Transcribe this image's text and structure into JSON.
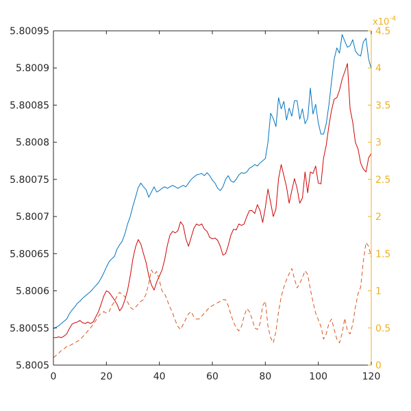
{
  "chart_data": {
    "type": "line",
    "x": [
      0,
      1,
      2,
      3,
      4,
      5,
      6,
      7,
      8,
      9,
      10,
      11,
      12,
      13,
      14,
      15,
      16,
      17,
      18,
      19,
      20,
      21,
      22,
      23,
      24,
      25,
      26,
      27,
      28,
      29,
      30,
      31,
      32,
      33,
      34,
      35,
      36,
      37,
      38,
      39,
      40,
      41,
      42,
      43,
      44,
      45,
      46,
      47,
      48,
      49,
      50,
      51,
      52,
      53,
      54,
      55,
      56,
      57,
      58,
      59,
      60,
      61,
      62,
      63,
      64,
      65,
      66,
      67,
      68,
      69,
      70,
      71,
      72,
      73,
      74,
      75,
      76,
      77,
      78,
      79,
      80,
      81,
      82,
      83,
      84,
      85,
      86,
      87,
      88,
      89,
      90,
      91,
      92,
      93,
      94,
      95,
      96,
      97,
      98,
      99,
      100,
      101,
      102,
      103,
      104,
      105,
      106,
      107,
      108,
      109,
      110,
      111,
      112,
      113,
      114,
      115,
      116,
      117,
      118,
      119,
      120
    ],
    "xlim": [
      0,
      120
    ],
    "xticks": [
      0,
      20,
      40,
      60,
      80,
      100,
      120
    ],
    "left_axis": {
      "ylim": [
        5.8005,
        5.80095
      ],
      "ticks": [
        5.8005,
        5.80055,
        5.8006,
        5.80065,
        5.8007,
        5.80075,
        5.8008,
        5.80085,
        5.8009,
        5.80095
      ],
      "tick_labels": [
        "5.8005",
        "5.80055",
        "5.8006",
        "5.80065",
        "5.8007",
        "5.80075",
        "5.8008",
        "5.80085",
        "5.8009",
        "5.80095"
      ]
    },
    "right_axis": {
      "ylim": [
        0,
        4.5
      ],
      "ticks": [
        0,
        0.5,
        1,
        1.5,
        2,
        2.5,
        3,
        3.5,
        4,
        4.5
      ],
      "tick_labels": [
        "0",
        "0.5",
        "1",
        "1.5",
        "2",
        "2.5",
        "3",
        "3.5",
        "4",
        "4.5"
      ],
      "exponent_base": "x10",
      "exponent_power": "-4",
      "color": "#edb120"
    },
    "grid": false,
    "series": [
      {
        "axis": "left",
        "style": "solid",
        "color": "#0072bd",
        "values": [
          5.800549,
          5.800551,
          5.800553,
          5.800556,
          5.800559,
          5.800562,
          5.800569,
          5.800574,
          5.800578,
          5.800583,
          5.800586,
          5.80059,
          5.800593,
          5.800596,
          5.800599,
          5.800603,
          5.800607,
          5.800611,
          5.800617,
          5.800624,
          5.800632,
          5.800639,
          5.800643,
          5.800646,
          5.800656,
          5.800662,
          5.800667,
          5.800677,
          5.80069,
          5.8007,
          5.800714,
          5.800726,
          5.800739,
          5.800745,
          5.80074,
          5.800736,
          5.800726,
          5.800733,
          5.80074,
          5.800733,
          5.800735,
          5.800738,
          5.80074,
          5.800738,
          5.80074,
          5.800742,
          5.80074,
          5.800738,
          5.80074,
          5.800742,
          5.80074,
          5.800745,
          5.80075,
          5.800753,
          5.800756,
          5.800757,
          5.800758,
          5.800755,
          5.800759,
          5.800755,
          5.800749,
          5.800745,
          5.800738,
          5.800735,
          5.80074,
          5.80075,
          5.800755,
          5.800748,
          5.800746,
          5.80075,
          5.800756,
          5.800759,
          5.800758,
          5.80076,
          5.800765,
          5.800767,
          5.80077,
          5.800768,
          5.800772,
          5.800775,
          5.800778,
          5.8008,
          5.800839,
          5.800832,
          5.800821,
          5.80086,
          5.800845,
          5.800855,
          5.80083,
          5.800846,
          5.800835,
          5.800856,
          5.800856,
          5.800831,
          5.800845,
          5.800825,
          5.800832,
          5.800873,
          5.800838,
          5.800851,
          5.800826,
          5.800811,
          5.800811,
          5.800825,
          5.80085,
          5.800882,
          5.800912,
          5.800927,
          5.80092,
          5.800945,
          5.800936,
          5.800928,
          5.80093,
          5.800938,
          5.800923,
          5.800918,
          5.800916,
          5.800935,
          5.80094,
          5.800912,
          5.800899
        ]
      },
      {
        "axis": "left",
        "style": "solid",
        "color": "#d00000",
        "values": [
          5.800537,
          5.800537,
          5.800538,
          5.800537,
          5.800539,
          5.800542,
          5.800549,
          5.800555,
          5.800557,
          5.800558,
          5.80056,
          5.800557,
          5.800556,
          5.800558,
          5.800556,
          5.800558,
          5.800565,
          5.800572,
          5.800582,
          5.800593,
          5.8006,
          5.800598,
          5.800593,
          5.800588,
          5.800582,
          5.800573,
          5.800578,
          5.800588,
          5.800601,
          5.80062,
          5.800643,
          5.800659,
          5.800669,
          5.800663,
          5.80065,
          5.800638,
          5.80062,
          5.800608,
          5.800601,
          5.800612,
          5.80062,
          5.800628,
          5.800642,
          5.800661,
          5.800675,
          5.80068,
          5.800678,
          5.800681,
          5.800693,
          5.800688,
          5.80067,
          5.80066,
          5.800672,
          5.800684,
          5.80069,
          5.800688,
          5.80069,
          5.800683,
          5.80068,
          5.800672,
          5.80067,
          5.800671,
          5.800668,
          5.80066,
          5.800648,
          5.80065,
          5.800661,
          5.800675,
          5.800683,
          5.800682,
          5.80069,
          5.800688,
          5.80069,
          5.8007,
          5.800708,
          5.800708,
          5.800704,
          5.800716,
          5.800708,
          5.800692,
          5.800712,
          5.800737,
          5.800719,
          5.8007,
          5.80071,
          5.800751,
          5.80077,
          5.800755,
          5.80074,
          5.800718,
          5.800735,
          5.800751,
          5.800738,
          5.800718,
          5.800725,
          5.80076,
          5.800732,
          5.80076,
          5.800758,
          5.800768,
          5.800745,
          5.800744,
          5.800779,
          5.800796,
          5.800822,
          5.800843,
          5.800858,
          5.80086,
          5.80087,
          5.800885,
          5.800895,
          5.800906,
          5.800845,
          5.800827,
          5.8008,
          5.800791,
          5.800772,
          5.800764,
          5.80076,
          5.800779,
          5.800785
        ]
      },
      {
        "axis": "right",
        "style": "dashed",
        "color": "#d95319",
        "values": [
          0.1,
          0.13,
          0.16,
          0.2,
          0.22,
          0.25,
          0.26,
          0.28,
          0.3,
          0.32,
          0.34,
          0.38,
          0.42,
          0.46,
          0.5,
          0.55,
          0.6,
          0.66,
          0.7,
          0.72,
          0.7,
          0.72,
          0.8,
          0.85,
          0.93,
          0.98,
          0.95,
          0.92,
          0.85,
          0.78,
          0.75,
          0.78,
          0.82,
          0.86,
          0.88,
          0.96,
          1.1,
          1.28,
          1.22,
          1.26,
          1.14,
          1.0,
          0.96,
          0.87,
          0.78,
          0.7,
          0.6,
          0.52,
          0.48,
          0.55,
          0.62,
          0.69,
          0.72,
          0.65,
          0.62,
          0.62,
          0.66,
          0.7,
          0.74,
          0.78,
          0.8,
          0.82,
          0.84,
          0.86,
          0.88,
          0.88,
          0.8,
          0.68,
          0.58,
          0.5,
          0.46,
          0.52,
          0.66,
          0.76,
          0.72,
          0.62,
          0.5,
          0.48,
          0.56,
          0.8,
          0.86,
          0.52,
          0.37,
          0.3,
          0.45,
          0.72,
          0.92,
          1.05,
          1.15,
          1.23,
          1.3,
          1.16,
          1.04,
          1.1,
          1.18,
          1.27,
          1.22,
          1.02,
          0.85,
          0.7,
          0.61,
          0.52,
          0.35,
          0.42,
          0.56,
          0.62,
          0.48,
          0.35,
          0.3,
          0.43,
          0.63,
          0.46,
          0.42,
          0.55,
          0.78,
          0.96,
          1.05,
          1.4,
          1.65,
          1.6,
          1.45
        ]
      }
    ]
  }
}
